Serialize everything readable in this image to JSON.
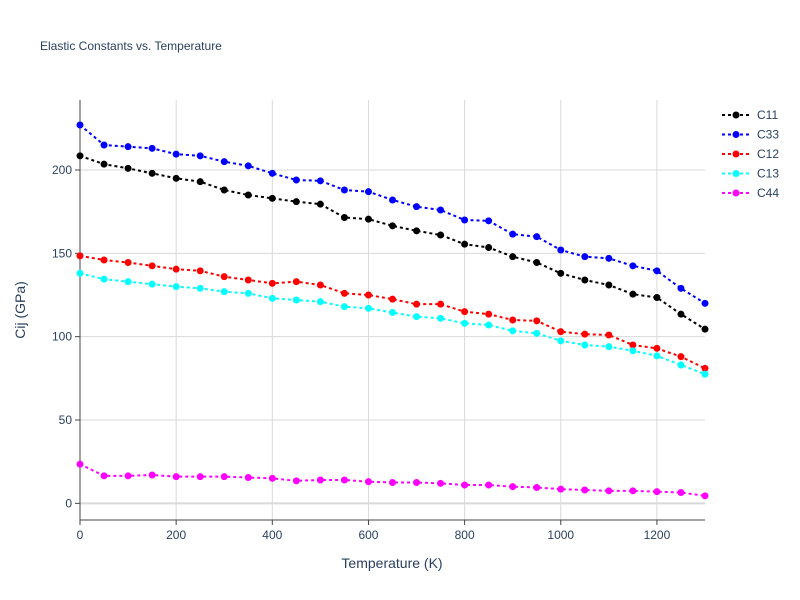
{
  "chart_data": {
    "type": "line",
    "title": "Elastic Constants vs. Temperature",
    "xlabel": "Temperature (K)",
    "ylabel": "Cij (GPa)",
    "xlim": [
      0,
      1300
    ],
    "ylim": [
      -10,
      242
    ],
    "xticks": [
      0,
      200,
      400,
      600,
      800,
      1000,
      1200
    ],
    "yticks": [
      0,
      50,
      100,
      150,
      200
    ],
    "grid": true,
    "legend_position": "top-right, outside plot",
    "line_style": "dotted with markers",
    "x": [
      0,
      50,
      100,
      150,
      200,
      250,
      300,
      350,
      400,
      450,
      500,
      550,
      600,
      650,
      700,
      750,
      800,
      850,
      900,
      950,
      1000,
      1050,
      1100,
      1150,
      1200,
      1250,
      1300
    ],
    "series": [
      {
        "name": "C11",
        "color": "#000000",
        "values": [
          208.5,
          203.5,
          201,
          198,
          195,
          193,
          188,
          185,
          183,
          181,
          179.5,
          171.5,
          170.5,
          166.5,
          163.5,
          161,
          155.5,
          153.5,
          148,
          144.5,
          138,
          134,
          131,
          125.5,
          123.5,
          113.5,
          104.5
        ]
      },
      {
        "name": "C33",
        "color": "#0000ff",
        "values": [
          227,
          215,
          214,
          213,
          209.5,
          208.5,
          205,
          202.5,
          198,
          194,
          193.5,
          188,
          187,
          182,
          178,
          176,
          170,
          169.5,
          161.5,
          160,
          152,
          148,
          147,
          142.5,
          139.5,
          129,
          120
        ]
      },
      {
        "name": "C12",
        "color": "#ff0000",
        "values": [
          148.5,
          146,
          144.5,
          142.5,
          140.5,
          139.5,
          136,
          134,
          132,
          133,
          131,
          126,
          125,
          122.5,
          119.5,
          119.5,
          115,
          113.5,
          110,
          109.5,
          103,
          101.5,
          101,
          95,
          93,
          88,
          81
        ]
      },
      {
        "name": "C13",
        "color": "#00ffff",
        "values": [
          138,
          134.5,
          133,
          131.5,
          130,
          129,
          127,
          126,
          123,
          122,
          121,
          118,
          117,
          114.5,
          112,
          111,
          108,
          107,
          103.5,
          102,
          97.5,
          95,
          94,
          91.5,
          88.5,
          83,
          77.5
        ]
      },
      {
        "name": "C44",
        "color": "#ff00ff",
        "values": [
          23.5,
          16.5,
          16.5,
          17,
          16,
          16,
          16,
          15.5,
          15,
          13.5,
          14,
          14,
          13,
          12.5,
          12.5,
          12,
          11,
          11,
          10,
          9.5,
          8.5,
          8,
          7.5,
          7.5,
          7,
          6.5,
          4.5
        ]
      }
    ]
  }
}
